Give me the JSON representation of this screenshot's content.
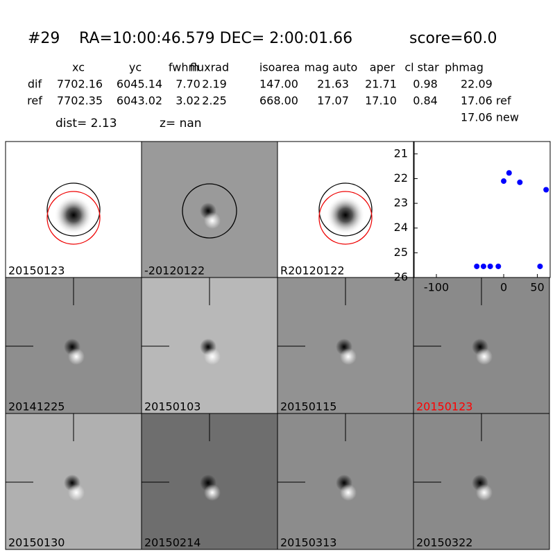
{
  "header": {
    "id": "#29",
    "coords": "RA=10:00:46.579 DEC= 2:00:01.66",
    "score": "score=60.0"
  },
  "table": {
    "columns": [
      "xc",
      "yc",
      "fwhm",
      "fluxrad",
      "isoarea",
      "mag auto",
      "aper",
      "cl star",
      "phmag"
    ],
    "rows": [
      [
        "dif",
        "7702.16",
        "6045.14",
        "7.70",
        "2.19",
        "147.00",
        "21.63",
        "21.71",
        "0.98",
        "22.09"
      ],
      [
        "ref",
        "7702.35",
        "6043.02",
        "3.02",
        "2.25",
        "668.00",
        "17.07",
        "17.10",
        "0.84",
        "17.06 ref"
      ]
    ],
    "extra": "17.06 new",
    "dist": "dist=  2.13",
    "z": "z=   nan"
  },
  "panels": [
    "20150123",
    "-20120122",
    "R20120122",
    "20141225",
    "20150103",
    "20150115",
    "20150123",
    "20150130",
    "20150214",
    "20150313",
    "20150322"
  ],
  "highlight_color": "#ff0000",
  "chart_data": {
    "type": "scatter",
    "color": "#0000ff",
    "x": [
      -40,
      -30,
      -20,
      -8,
      0,
      8,
      24,
      54,
      63
    ],
    "y": [
      25.55,
      25.55,
      25.55,
      25.55,
      22.1,
      21.77,
      22.15,
      25.55,
      22.45
    ],
    "xlim": [
      -133,
      69
    ],
    "ylim": [
      26,
      20.5
    ],
    "xticks": [
      -100,
      0,
      50
    ],
    "yticks": [
      21,
      22,
      23,
      24,
      25,
      26
    ]
  }
}
